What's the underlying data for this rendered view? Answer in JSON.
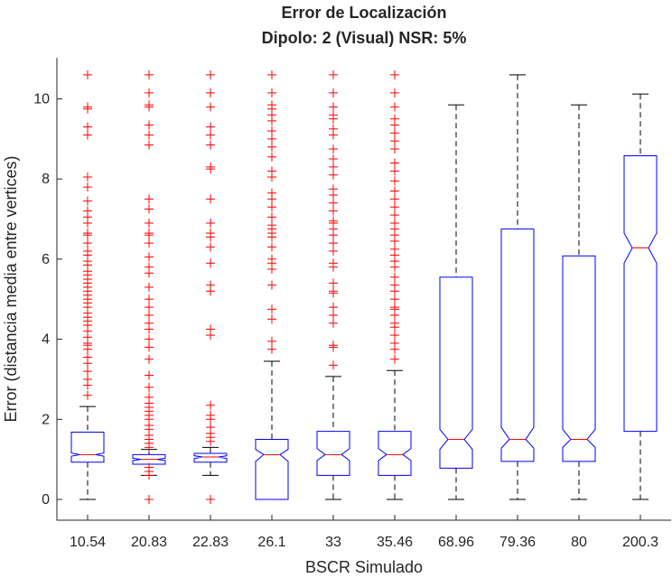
{
  "chart_data": {
    "type": "box",
    "title": "Error de Localización",
    "subtitle": "Dipolo: 2 (Visual) NSR: 5%",
    "xlabel": "BSCR Simulado",
    "ylabel": "Error (distancia media entre vertices)",
    "ylim": [
      -0.5,
      11.2
    ],
    "yticks": [
      0,
      2,
      4,
      6,
      8,
      10
    ],
    "grid": false,
    "legend": "none",
    "colors": {
      "box": "#0000ff",
      "median": "#ff0000",
      "whisker": "#000000",
      "outlier": "#ff0000",
      "text": "#262626"
    },
    "categories": [
      "10.54",
      "20.83",
      "22.83",
      "26.1",
      "33",
      "35.46",
      "68.96",
      "79.36",
      "80",
      "200.3"
    ],
    "boxes": [
      {
        "category": "10.54",
        "whisker_low": 0,
        "q1": 0.93,
        "median": 1.12,
        "q3": 1.68,
        "whisker_high": 2.32,
        "notch_low": 1.08,
        "notch_high": 1.16,
        "outliers": [
          2.6,
          2.85,
          3.0,
          3.2,
          3.4,
          3.55,
          3.75,
          3.85,
          3.9,
          4.05,
          4.2,
          4.35,
          4.45,
          4.55,
          4.65,
          4.8,
          4.9,
          5.0,
          5.1,
          5.2,
          5.3,
          5.4,
          5.5,
          5.6,
          5.7,
          5.85,
          5.95,
          6.1,
          6.2,
          6.4,
          6.6,
          6.65,
          6.9,
          7.05,
          7.2,
          7.45,
          7.8,
          8.05,
          9.1,
          9.3,
          9.75,
          9.8,
          10.6
        ]
      },
      {
        "category": "20.83",
        "whisker_low": 0.6,
        "q1": 0.88,
        "median": 1.0,
        "q3": 1.12,
        "whisker_high": 1.25,
        "notch_low": 0.97,
        "notch_high": 1.03,
        "outliers": [
          0,
          0.6,
          0.7,
          0.8,
          1.3,
          1.4,
          1.5,
          1.6,
          1.75,
          1.85,
          2.0,
          2.1,
          2.2,
          2.3,
          2.4,
          2.55,
          2.8,
          3.1,
          3.5,
          3.8,
          4.0,
          4.25,
          4.4,
          4.6,
          4.8,
          5.0,
          5.3,
          5.65,
          5.8,
          6.05,
          6.4,
          6.6,
          6.65,
          6.9,
          7.25,
          7.5,
          8.85,
          9.1,
          9.35,
          9.8,
          9.85,
          10.15,
          10.6
        ]
      },
      {
        "category": "22.83",
        "whisker_low": 0.6,
        "q1": 0.93,
        "median": 1.06,
        "q3": 1.15,
        "whisker_high": 1.3,
        "notch_low": 1.02,
        "notch_high": 1.09,
        "outliers": [
          0,
          1.45,
          1.55,
          1.65,
          1.8,
          2.0,
          2.1,
          2.35,
          4.1,
          4.25,
          5.2,
          5.35,
          5.9,
          6.3,
          6.55,
          6.65,
          6.9,
          7.5,
          8.25,
          8.3,
          8.85,
          9.1,
          9.3,
          9.8,
          10.15,
          10.6
        ]
      },
      {
        "category": "26.1",
        "whisker_low": 0,
        "q1": 0,
        "median": 1.12,
        "q3": 1.5,
        "whisker_high": 3.45,
        "notch_low": 0.95,
        "notch_high": 1.25,
        "outliers": [
          3.75,
          3.95,
          4.5,
          4.75,
          5.35,
          5.75,
          5.9,
          6.0,
          6.3,
          6.55,
          6.65,
          6.75,
          6.85,
          7.05,
          7.3,
          7.5,
          7.65,
          8.05,
          8.2,
          8.55,
          8.8,
          9.0,
          9.2,
          9.45,
          9.6,
          9.75,
          9.85,
          10.15,
          10.6
        ]
      },
      {
        "category": "33",
        "whisker_low": 0,
        "q1": 0.6,
        "median": 1.12,
        "q3": 1.7,
        "whisker_high": 3.07,
        "notch_low": 0.97,
        "notch_high": 1.27,
        "outliers": [
          3.35,
          3.8,
          3.85,
          4.4,
          4.6,
          4.8,
          5.15,
          5.2,
          5.4,
          5.8,
          5.9,
          6.2,
          6.4,
          6.6,
          6.75,
          6.9,
          6.95,
          7.2,
          7.4,
          7.6,
          7.75,
          8.1,
          8.3,
          8.5,
          8.75,
          9.1,
          9.25,
          9.5,
          9.6,
          9.8,
          10.15,
          10.6
        ]
      },
      {
        "category": "35.46",
        "whisker_low": 0,
        "q1": 0.6,
        "median": 1.12,
        "q3": 1.7,
        "whisker_high": 3.22,
        "notch_low": 0.97,
        "notch_high": 1.27,
        "outliers": [
          3.5,
          3.75,
          3.9,
          4.1,
          4.3,
          4.4,
          4.6,
          4.75,
          4.8,
          5.0,
          5.2,
          5.35,
          5.55,
          5.8,
          5.95,
          6.1,
          6.25,
          6.45,
          6.6,
          6.75,
          6.9,
          7.1,
          7.3,
          7.5,
          7.7,
          7.95,
          8.2,
          8.4,
          8.75,
          8.95,
          9.15,
          9.35,
          9.5,
          9.8,
          10.15,
          10.6
        ]
      },
      {
        "category": "68.96",
        "whisker_low": 0,
        "q1": 0.78,
        "median": 1.5,
        "q3": 5.55,
        "whisker_high": 9.85,
        "notch_low": 1.25,
        "notch_high": 1.75,
        "outliers": []
      },
      {
        "category": "79.36",
        "whisker_low": 0,
        "q1": 0.95,
        "median": 1.5,
        "q3": 6.75,
        "whisker_high": 10.6,
        "notch_low": 1.28,
        "notch_high": 1.8,
        "outliers": []
      },
      {
        "category": "80",
        "whisker_low": 0,
        "q1": 0.95,
        "median": 1.5,
        "q3": 6.08,
        "whisker_high": 9.85,
        "notch_low": 1.3,
        "notch_high": 1.75,
        "outliers": []
      },
      {
        "category": "200.3",
        "whisker_low": 0,
        "q1": 1.7,
        "median": 6.28,
        "q3": 8.58,
        "whisker_high": 10.12,
        "notch_low": 5.9,
        "notch_high": 6.65,
        "outliers": []
      }
    ]
  }
}
